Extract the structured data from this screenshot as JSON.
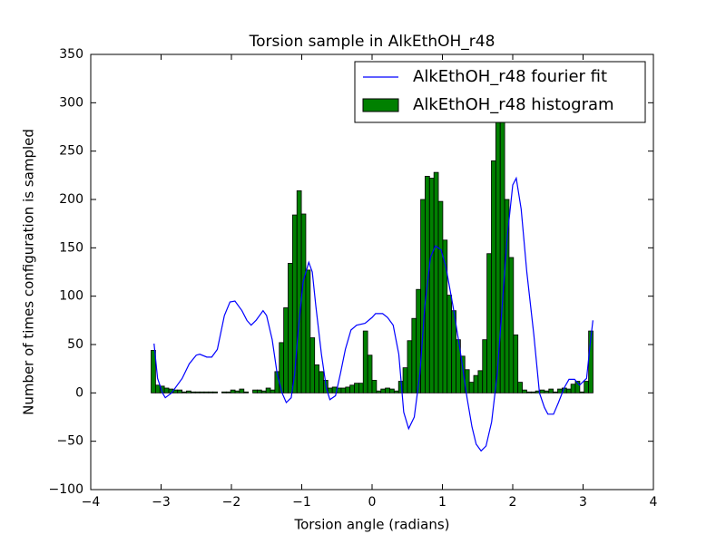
{
  "chart_data": {
    "type": "histogram",
    "title": "Torsion sample in AlkEthOH_r48",
    "x_label": "Torsion angle (radians)",
    "y_label": "Number of times configuration is sampled",
    "bins": [
      -3.1416,
      -3.0788,
      -3.0159,
      -2.9531,
      -2.8903,
      -2.8274,
      -2.7646,
      -2.7018,
      -2.6389,
      -2.5761,
      -2.5133,
      -2.4504,
      -2.3876,
      -2.3248,
      -2.2619,
      -2.1991,
      -2.1363,
      -2.0735,
      -2.0106,
      -1.9478,
      -1.885,
      -1.8221,
      -1.7593,
      -1.6965,
      -1.6336,
      -1.5708,
      -1.508,
      -1.4451,
      -1.3823,
      -1.3195,
      -1.2566,
      -1.1938,
      -1.131,
      -1.0681,
      -1.0053,
      -0.9425,
      -0.8796,
      -0.8168,
      -0.754,
      -0.6912,
      -0.6283,
      -0.5655,
      -0.5027,
      -0.4398,
      -0.377,
      -0.3142,
      -0.2513,
      -0.1885,
      -0.1257,
      -0.0628,
      0,
      0.0628,
      0.1257,
      0.1885,
      0.2513,
      0.3142,
      0.377,
      0.4398,
      0.5027,
      0.5655,
      0.6283,
      0.6912,
      0.754,
      0.8168,
      0.8796,
      0.9425,
      1.0053,
      1.0681,
      1.131,
      1.1938,
      1.2566,
      1.3195,
      1.3823,
      1.4451,
      1.508,
      1.5708,
      1.6336,
      1.6965,
      1.7593,
      1.8221,
      1.885,
      1.9478,
      2.0106,
      2.0735,
      2.1363,
      2.1991,
      2.2619,
      2.3248,
      2.3876,
      2.4504,
      2.5133,
      2.5761,
      2.6389,
      2.7018,
      2.7646,
      2.8274,
      2.8903,
      2.9531,
      3.0159,
      3.0788,
      3.1416
    ],
    "series": [
      {
        "name": "AlkEthOH_r48 fourier fit",
        "type": "line",
        "color": "#0000ff",
        "x": [
          -3.1,
          -3.05,
          -2.98,
          -2.94,
          -2.85,
          -2.7,
          -2.6,
          -2.5,
          -2.45,
          -2.35,
          -2.28,
          -2.2,
          -2.1,
          -2.02,
          -1.95,
          -1.85,
          -1.78,
          -1.72,
          -1.65,
          -1.55,
          -1.5,
          -1.42,
          -1.35,
          -1.28,
          -1.22,
          -1.15,
          -1.1,
          -1.05,
          -0.98,
          -0.9,
          -0.85,
          -0.8,
          -0.72,
          -0.65,
          -0.6,
          -0.52,
          -0.45,
          -0.38,
          -0.3,
          -0.22,
          -0.1,
          0,
          0.05,
          0.15,
          0.22,
          0.3,
          0.38,
          0.45,
          0.52,
          0.6,
          0.68,
          0.75,
          0.83,
          0.9,
          0.98,
          1.05,
          1.15,
          1.25,
          1.35,
          1.42,
          1.48,
          1.55,
          1.62,
          1.7,
          1.78,
          1.85,
          1.92,
          2.0,
          2.05,
          2.12,
          2.2,
          2.3,
          2.38,
          2.45,
          2.5,
          2.58,
          2.65,
          2.73,
          2.8,
          2.88,
          2.95,
          3.05,
          3.1,
          3.14
        ],
        "values": [
          51,
          15,
          0,
          -5,
          0,
          15,
          30,
          39,
          40,
          37,
          37,
          45,
          80,
          94,
          95,
          85,
          75,
          70,
          75,
          85,
          80,
          55,
          20,
          0,
          -10,
          -5,
          20,
          65,
          115,
          135,
          125,
          90,
          40,
          5,
          -7,
          -3,
          20,
          45,
          65,
          70,
          72,
          78,
          82,
          82,
          78,
          70,
          40,
          -20,
          -37,
          -25,
          20,
          90,
          140,
          152,
          148,
          130,
          90,
          45,
          -5,
          -35,
          -53,
          -60,
          -55,
          -30,
          20,
          90,
          160,
          215,
          222,
          190,
          125,
          60,
          0,
          -15,
          -22,
          -22,
          -10,
          5,
          14,
          14,
          8,
          15,
          50,
          75
        ]
      },
      {
        "name": "AlkEthOH_r48 histogram",
        "type": "histogram",
        "color": "#008000",
        "values": [
          44,
          8,
          7,
          5,
          4,
          3,
          3,
          1,
          2,
          1,
          1,
          1,
          1,
          1,
          1,
          0,
          1,
          1,
          3,
          2,
          4,
          1,
          0,
          3,
          3,
          2,
          5,
          3,
          22,
          52,
          88,
          134,
          184,
          209,
          185,
          127,
          57,
          29,
          22,
          13,
          5,
          6,
          5,
          5,
          6,
          8,
          10,
          10,
          64,
          39,
          13,
          2,
          4,
          5,
          4,
          2,
          12,
          26,
          54,
          77,
          107,
          200,
          224,
          222,
          228,
          198,
          158,
          101,
          85,
          55,
          38,
          24,
          11,
          18,
          23,
          55,
          144,
          240,
          290,
          320,
          200,
          140,
          60,
          11,
          3,
          1,
          1,
          2,
          3,
          2,
          4,
          1,
          4,
          5,
          4,
          9,
          12,
          1,
          12,
          64
        ]
      }
    ],
    "xlim": [
      -4,
      4
    ],
    "ylim": [
      -100,
      350
    ],
    "xticks": [
      {
        "value": -4,
        "label": "−4"
      },
      {
        "value": -3,
        "label": "−3"
      },
      {
        "value": -2,
        "label": "−2"
      },
      {
        "value": -1,
        "label": "−1"
      },
      0,
      1,
      2,
      3,
      4
    ],
    "yticks": [
      {
        "value": -100,
        "label": "−100"
      },
      {
        "value": -50,
        "label": "−50"
      },
      0,
      50,
      100,
      150,
      200,
      250,
      300,
      350
    ],
    "legend": "upper right"
  }
}
